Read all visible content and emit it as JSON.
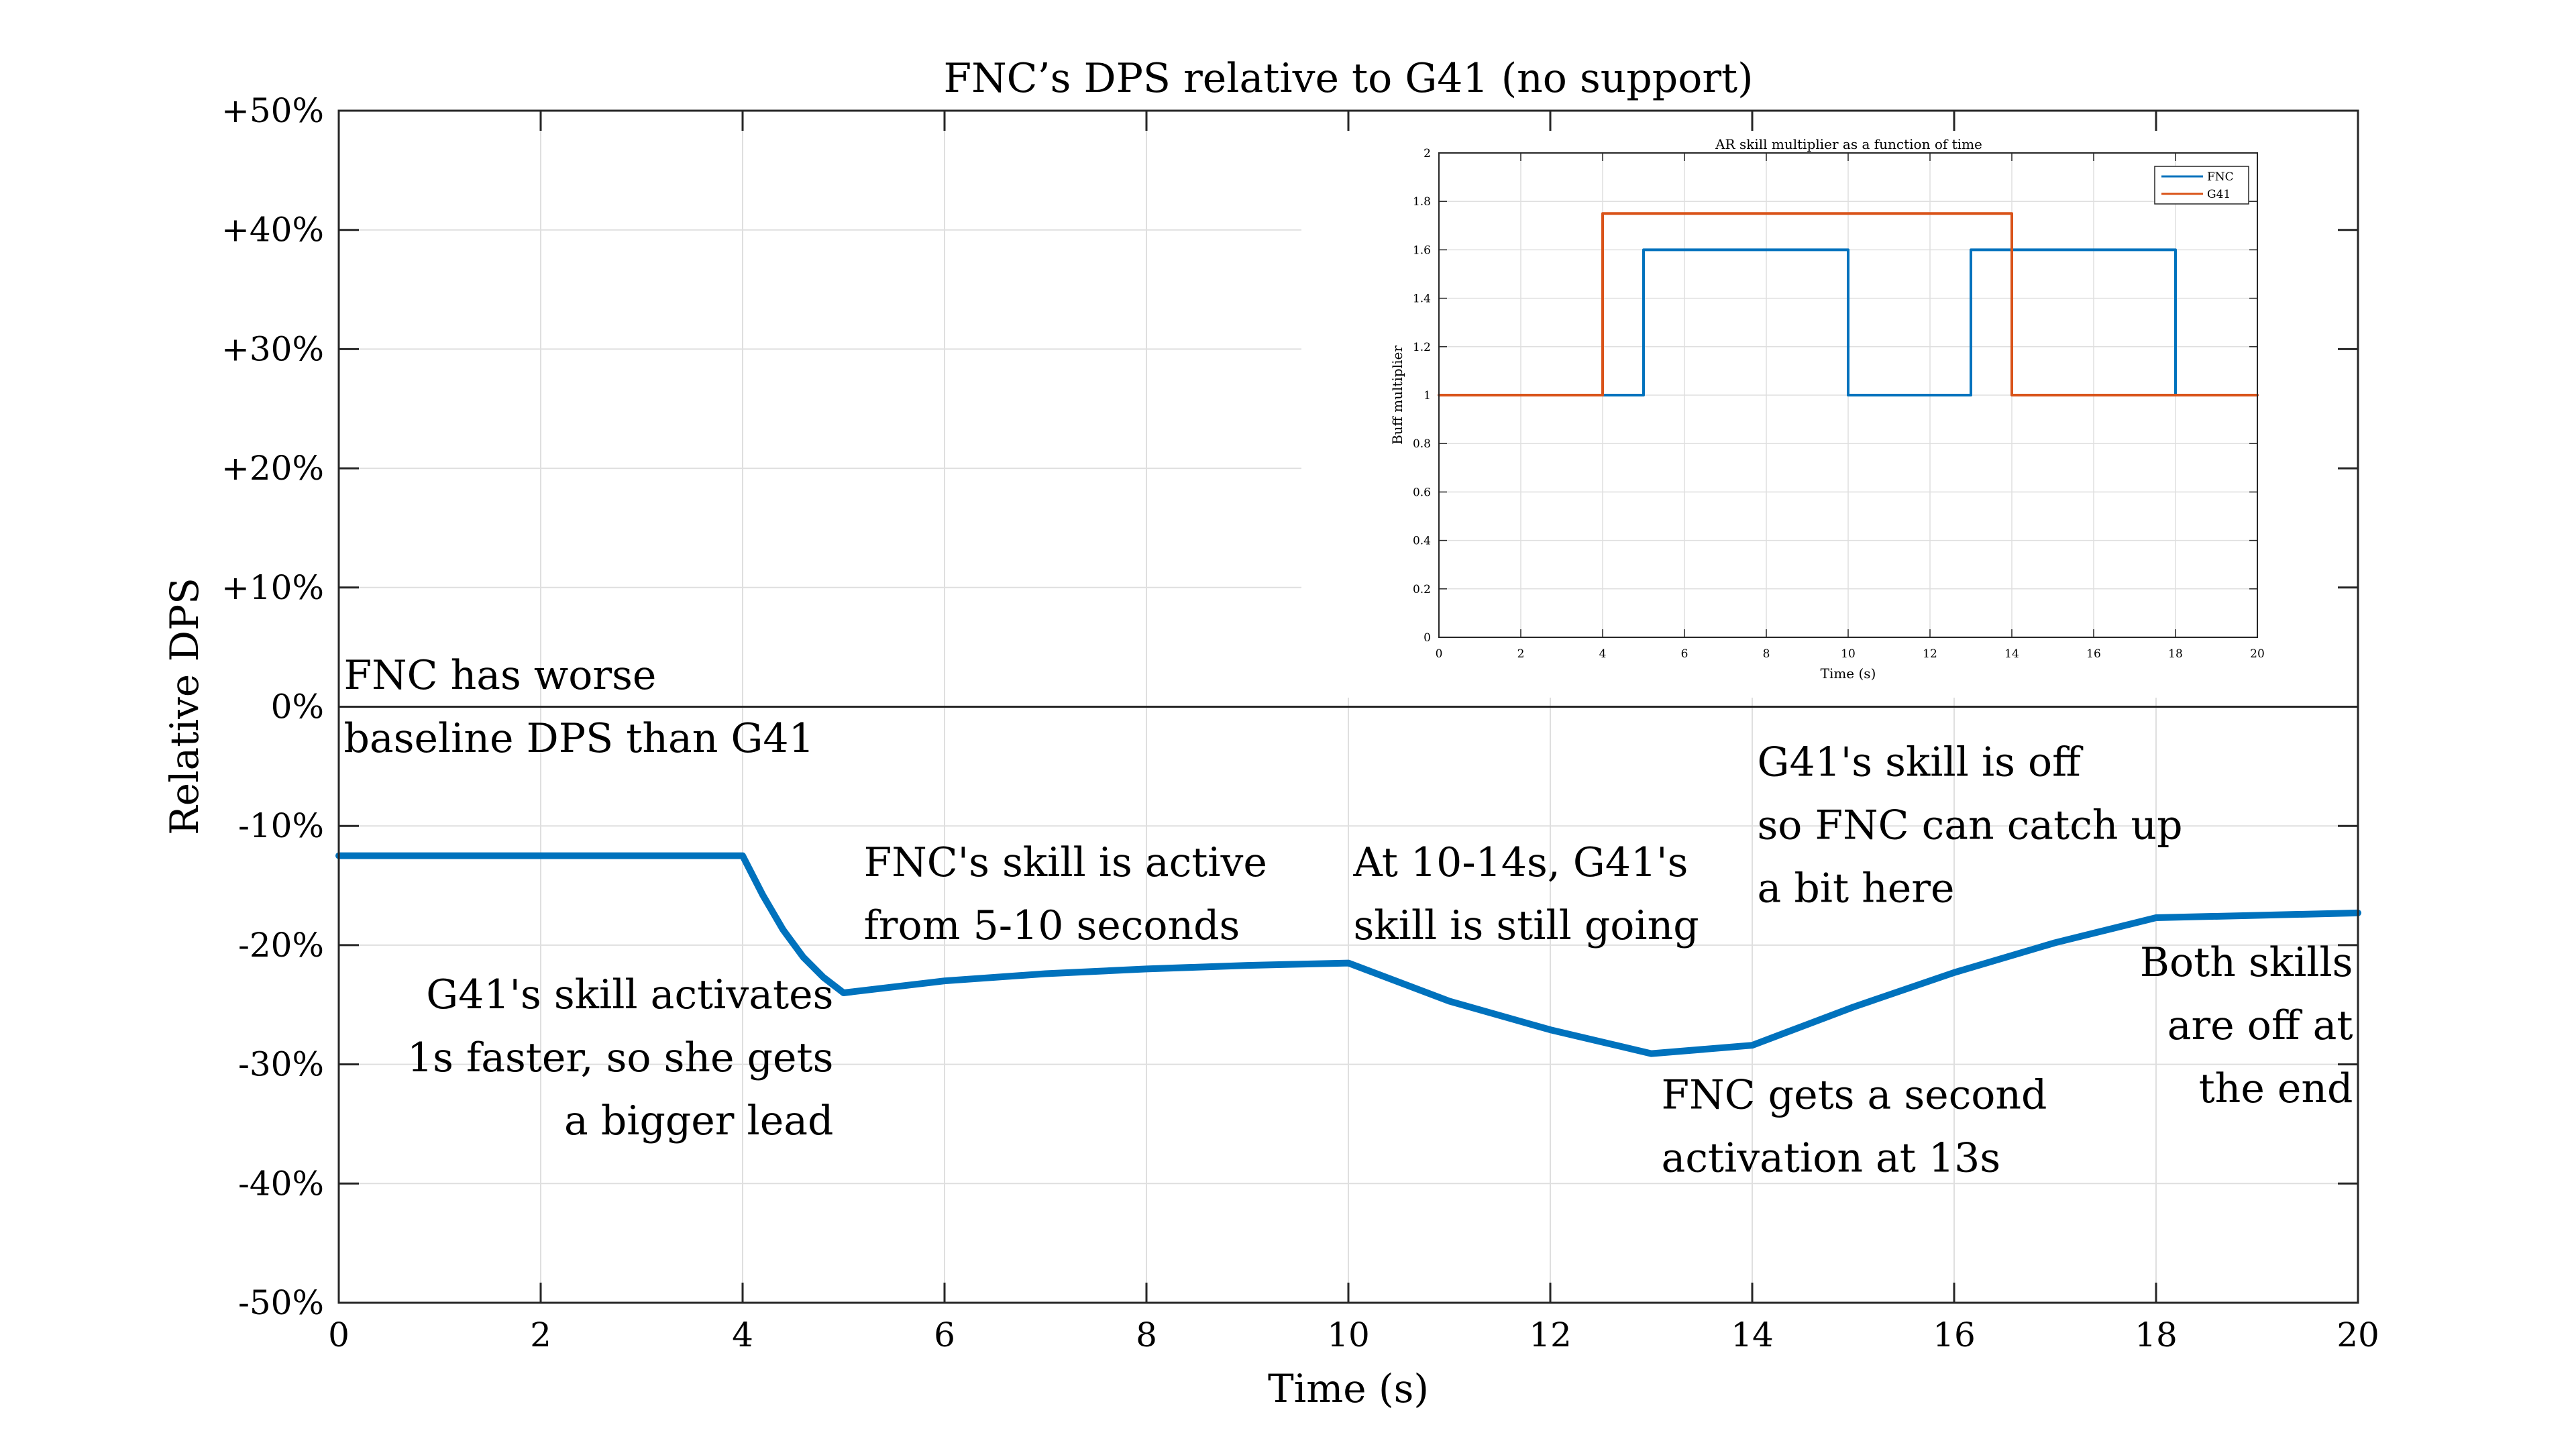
{
  "chart_data": [
    {
      "type": "line",
      "title": "FNC’s DPS relative to G41 (no support)",
      "xlabel": "Time (s)",
      "ylabel": "Relative DPS",
      "xlim": [
        0,
        20
      ],
      "ylim": [
        -50,
        50
      ],
      "x_ticks": [
        0,
        2,
        4,
        6,
        8,
        10,
        12,
        14,
        16,
        18,
        20
      ],
      "x_tick_labels": [
        "0",
        "2",
        "4",
        "6",
        "8",
        "10",
        "12",
        "14",
        "16",
        "18",
        "20"
      ],
      "y_ticks": [
        50,
        40,
        30,
        20,
        10,
        0,
        -10,
        -20,
        -30,
        -40,
        -50
      ],
      "y_tick_labels": [
        "+50%",
        "+40%",
        "+30%",
        "+20%",
        "+10%",
        "0%",
        "-10%",
        "-20%",
        "-30%",
        "-40%",
        "-50%"
      ],
      "grid": true,
      "zero_line": true,
      "series": [
        {
          "color": "#0072bd",
          "x": [
            0,
            4,
            4.2,
            4.4,
            4.6,
            4.8,
            5,
            6,
            7,
            8,
            9,
            10,
            11,
            12,
            13,
            14,
            15,
            16,
            17,
            18,
            19,
            20
          ],
          "y": [
            -12.5,
            -12.5,
            -15.8,
            -18.7,
            -21.0,
            -22.7,
            -24.0,
            -23.0,
            -22.4,
            -22.0,
            -21.7,
            -21.5,
            -24.7,
            -27.1,
            -29.1,
            -28.4,
            -25.2,
            -22.3,
            -19.8,
            -17.7,
            -17.5,
            -17.3
          ]
        }
      ],
      "annotations": [
        {
          "lines": [
            "FNC has worse",
            "baseline DPS than G41"
          ],
          "at": [
            0.05,
            1.5
          ]
        },
        {
          "lines": [
            "G41's skill activates",
            "1s faster, so she gets",
            "a bigger lead"
          ],
          "at": [
            4.9,
            -25.3
          ]
        },
        {
          "lines": [
            "FNC's skill is active",
            "from 5-10 seconds"
          ],
          "at": [
            5.2,
            -14.2
          ]
        },
        {
          "lines": [
            "At 10-14s, G41's",
            "skill is still going"
          ],
          "at": [
            10.05,
            -14.2
          ]
        },
        {
          "lines": [
            "G41's skill is off",
            "so FNC can catch up",
            "a bit here"
          ],
          "at": [
            14.05,
            -5.8
          ]
        },
        {
          "lines": [
            "FNC gets a second",
            "activation at 13s"
          ],
          "at": [
            13.1,
            -33.7
          ]
        },
        {
          "lines": [
            "Both skills",
            "are off at",
            "the end"
          ],
          "at": [
            19.95,
            -22.6
          ]
        }
      ]
    },
    {
      "type": "line",
      "title": "AR skill multiplier as a function of time",
      "xlabel": "Time (s)",
      "ylabel": "Buff multiplier",
      "xlim": [
        0,
        20
      ],
      "ylim": [
        0,
        2
      ],
      "x_ticks": [
        0,
        2,
        4,
        6,
        8,
        10,
        12,
        14,
        16,
        18,
        20
      ],
      "x_tick_labels": [
        "0",
        "2",
        "4",
        "6",
        "8",
        "10",
        "12",
        "14",
        "16",
        "18",
        "20"
      ],
      "y_ticks": [
        0,
        0.2,
        0.4,
        0.6,
        0.8,
        1,
        1.2,
        1.4,
        1.6,
        1.8,
        2
      ],
      "y_tick_labels": [
        "0",
        "0.2",
        "0.4",
        "0.6",
        "0.8",
        "1",
        "1.2",
        "1.4",
        "1.6",
        "1.8",
        "2"
      ],
      "grid": true,
      "legend": "top-right",
      "series": [
        {
          "name": "FNC",
          "color": "#0072bd",
          "x": [
            0,
            5,
            5,
            10,
            10,
            13,
            13,
            18,
            18,
            20
          ],
          "y": [
            1,
            1,
            1.6,
            1.6,
            1,
            1,
            1.6,
            1.6,
            1,
            1
          ]
        },
        {
          "name": "G41",
          "color": "#d95319",
          "x": [
            0,
            4,
            4,
            14,
            14,
            20
          ],
          "y": [
            1,
            1,
            1.75,
            1.75,
            1,
            1
          ]
        }
      ]
    }
  ]
}
